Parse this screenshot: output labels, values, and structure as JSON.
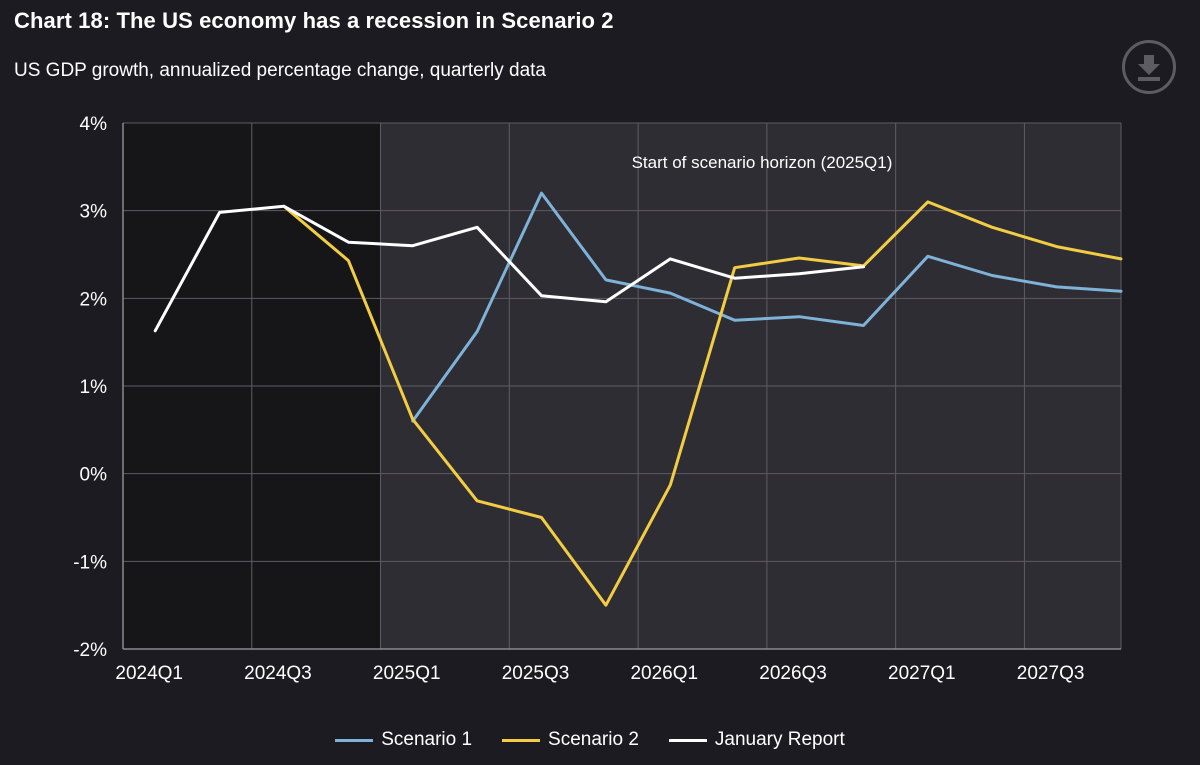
{
  "title": "Chart 18: The US economy has a recession in Scenario 2",
  "subtitle": "US GDP growth, annualized percentage change, quarterly data",
  "download_icon": "download-icon",
  "colors": {
    "background": "#1c1b21",
    "plot_history": "#161619",
    "plot_scenario": "#2e2d33",
    "grid": "#5e5d62",
    "scenario_1": "#7eb2d8",
    "scenario_2": "#f2cd44",
    "january_report": "#ffffff"
  },
  "chart_data": {
    "type": "line",
    "title": "Chart 18: The US economy has a recession in Scenario 2",
    "subtitle": "US GDP growth, annualized percentage change, quarterly data",
    "x": [
      "2024Q1",
      "2024Q2",
      "2024Q3",
      "2024Q4",
      "2025Q1",
      "2025Q2",
      "2025Q3",
      "2025Q4",
      "2026Q1",
      "2026Q2",
      "2026Q3",
      "2026Q4",
      "2027Q1",
      "2027Q2",
      "2027Q3",
      "2027Q4"
    ],
    "x_tick_labels": [
      "2024Q1",
      "2024Q3",
      "2025Q1",
      "2025Q3",
      "2026Q1",
      "2026Q3",
      "2027Q1",
      "2027Q3"
    ],
    "y_tick_labels": [
      "4%",
      "3%",
      "2%",
      "1%",
      "0%",
      "-1%",
      "-2%"
    ],
    "ylim": [
      -2,
      4
    ],
    "grid": true,
    "legend_position": "bottom",
    "series": [
      {
        "name": "Scenario 1",
        "values": [
          null,
          null,
          null,
          null,
          0.6,
          1.62,
          3.2,
          2.21,
          2.06,
          1.75,
          1.79,
          1.69,
          2.48,
          2.26,
          2.13,
          2.08
        ]
      },
      {
        "name": "Scenario 2",
        "values": [
          null,
          null,
          3.05,
          2.43,
          0.62,
          -0.31,
          -0.5,
          -1.5,
          -0.13,
          2.35,
          2.46,
          2.37,
          3.1,
          2.81,
          2.59,
          2.45
        ]
      },
      {
        "name": "January Report",
        "values": [
          1.63,
          2.98,
          3.05,
          2.64,
          2.6,
          2.81,
          2.03,
          1.96,
          2.45,
          2.23,
          2.28,
          2.36,
          null,
          null,
          null,
          null
        ]
      }
    ],
    "annotations": [
      {
        "text": "Start of scenario horizon (2025Q1)",
        "at_x": "2025Q1"
      }
    ],
    "shaded_region": {
      "from": "2025Q1",
      "label": "Start of scenario horizon (2025Q1)"
    }
  }
}
